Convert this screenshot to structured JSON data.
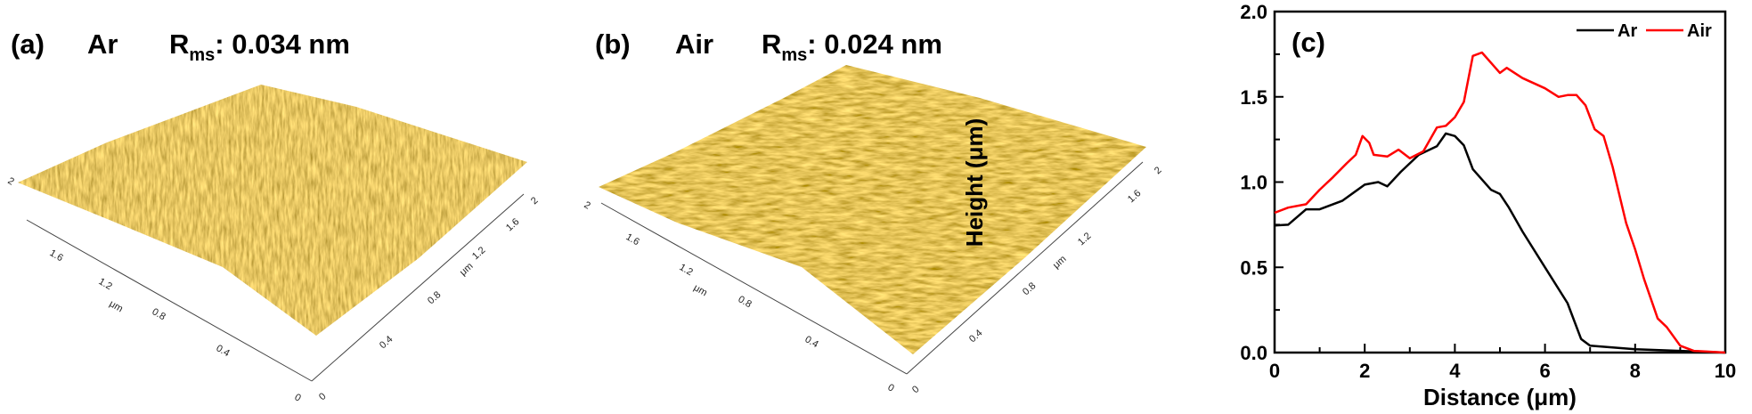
{
  "panel_a": {
    "label": "(a)",
    "gas": "Ar",
    "rms_main": "R",
    "rms_sub": "ms",
    "rms_value": ": 0.034 nm",
    "left_axis_labels": [
      "2",
      "1.6",
      "1.2",
      "0.8",
      "0.4",
      "0"
    ],
    "right_axis_labels": [
      "0",
      "0.4",
      "0.8",
      "1.2",
      "1.6",
      "2"
    ],
    "axis_unit": "μm"
  },
  "panel_b": {
    "label": "(b)",
    "gas": "Air",
    "rms_main": "R",
    "rms_sub": "ms",
    "rms_value": ": 0.024 nm",
    "left_axis_labels": [
      "2",
      "1.6",
      "1.2",
      "0.8",
      "0.4",
      "0"
    ],
    "right_axis_labels": [
      "0",
      "0.4",
      "0.8",
      "1.2",
      "1.6",
      "2"
    ],
    "axis_unit": "μm"
  },
  "chart_data": {
    "type": "line",
    "panel_label": "(c)",
    "xlabel": "Distance (μm)",
    "ylabel": "Height (μm)",
    "xlim": [
      0,
      10
    ],
    "ylim": [
      0,
      2.0
    ],
    "x_ticks": [
      "0",
      "2",
      "4",
      "6",
      "8",
      "10"
    ],
    "y_ticks": [
      "0.0",
      "0.5",
      "1.0",
      "1.5",
      "2.0"
    ],
    "grid": false,
    "legend_position": "top-right",
    "series": [
      {
        "name": "Ar",
        "color": "#000000",
        "x": [
          0,
          0.3,
          0.7,
          1.0,
          1.5,
          2.0,
          2.3,
          2.5,
          2.8,
          3.2,
          3.6,
          3.8,
          4.0,
          4.2,
          4.4,
          4.8,
          5.0,
          5.2,
          5.5,
          6.0,
          6.5,
          6.8,
          7.0,
          8.0,
          9.0,
          10.0
        ],
        "y": [
          0.745,
          0.75,
          0.84,
          0.84,
          0.89,
          0.985,
          1.0,
          0.975,
          1.06,
          1.16,
          1.21,
          1.285,
          1.27,
          1.215,
          1.075,
          0.955,
          0.93,
          0.85,
          0.71,
          0.5,
          0.29,
          0.08,
          0.04,
          0.02,
          0.01,
          0.0
        ]
      },
      {
        "name": "Air",
        "color": "#ff0000",
        "x": [
          0,
          0.3,
          0.7,
          1.0,
          1.3,
          1.6,
          1.8,
          1.95,
          2.1,
          2.2,
          2.5,
          2.75,
          3.0,
          3.3,
          3.6,
          3.8,
          4.0,
          4.2,
          4.4,
          4.6,
          4.8,
          5.0,
          5.15,
          5.5,
          6.0,
          6.3,
          6.5,
          6.7,
          6.9,
          7.1,
          7.3,
          7.5,
          7.8,
          8.0,
          8.2,
          8.5,
          8.7,
          9.0,
          9.3,
          10.0
        ],
        "y": [
          0.82,
          0.85,
          0.87,
          0.955,
          1.03,
          1.11,
          1.16,
          1.27,
          1.23,
          1.16,
          1.15,
          1.19,
          1.14,
          1.18,
          1.32,
          1.33,
          1.38,
          1.47,
          1.74,
          1.76,
          1.7,
          1.64,
          1.67,
          1.61,
          1.55,
          1.5,
          1.51,
          1.51,
          1.45,
          1.31,
          1.27,
          1.09,
          0.76,
          0.605,
          0.43,
          0.2,
          0.15,
          0.04,
          0.01,
          0.0
        ]
      }
    ]
  }
}
